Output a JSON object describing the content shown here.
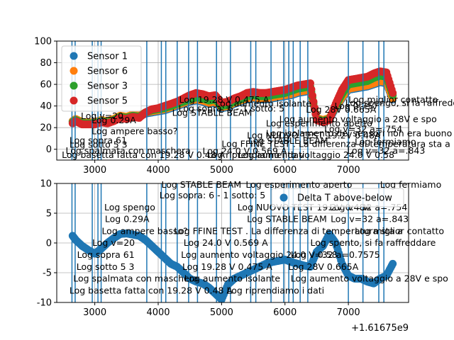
{
  "chart_data": [
    {
      "type": "scatter",
      "title": "",
      "xlabel": "",
      "ylabel": "",
      "xlim": [
        2400,
        7950
      ],
      "ylim": [
        -10,
        100
      ],
      "yticks": [
        0,
        20,
        40,
        60,
        80,
        100
      ],
      "xticks": [
        3000,
        4000,
        5000,
        6000,
        7000
      ],
      "x_offset_text": "",
      "grid": true,
      "legend_position": "upper-left",
      "x": [
        2650,
        2700,
        2800,
        2900,
        3000,
        3100,
        3200,
        3300,
        3400,
        3500,
        3600,
        3700,
        3800,
        3900,
        4000,
        4100,
        4200,
        4300,
        4400,
        4500,
        4600,
        4700,
        4800,
        4900,
        5000,
        5100,
        5200,
        5300,
        5400,
        5500,
        5600,
        5700,
        5800,
        5900,
        6000,
        6100,
        6200,
        6300,
        6400,
        6500,
        6600,
        6700,
        6800,
        6900,
        7000,
        7100,
        7200,
        7300,
        7400,
        7500,
        7600,
        7700
      ],
      "series": [
        {
          "name": "Sensor 1",
          "color": "#1f77b4",
          "values": [
            26,
            27,
            24,
            25,
            24,
            26,
            25,
            27,
            30,
            29,
            31,
            30,
            33,
            34,
            35,
            36,
            38,
            40,
            42,
            44,
            45,
            44,
            42,
            43,
            38,
            39,
            42,
            44,
            46,
            47,
            46,
            46,
            47,
            48,
            49,
            50,
            52,
            53,
            54,
            28,
            26,
            28,
            38,
            47,
            55,
            56,
            57,
            58,
            60,
            62,
            61,
            46
          ]
        },
        {
          "name": "Sensor 6",
          "color": "#ff7f0e",
          "values": [
            26,
            28,
            25,
            25,
            25,
            27,
            26,
            28,
            31,
            30,
            32,
            31,
            34,
            35,
            36,
            37,
            39,
            41,
            43,
            45,
            46,
            45,
            43,
            44,
            39,
            40,
            43,
            45,
            47,
            48,
            47,
            47,
            48,
            49,
            50,
            51,
            53,
            54,
            55,
            29,
            27,
            29,
            39,
            48,
            56,
            57,
            58,
            59,
            61,
            63,
            62,
            47
          ]
        },
        {
          "name": "Sensor 3",
          "color": "#2ca02c",
          "values": [
            25,
            27,
            24,
            24,
            24,
            26,
            25,
            27,
            30,
            29,
            31,
            30,
            34,
            36,
            37,
            38,
            40,
            42,
            44,
            46,
            48,
            47,
            45,
            46,
            40,
            41,
            44,
            46,
            49,
            50,
            49,
            49,
            50,
            51,
            52,
            54,
            56,
            57,
            58,
            28,
            26,
            28,
            40,
            51,
            60,
            61,
            62,
            63,
            66,
            68,
            67,
            50
          ]
        },
        {
          "name": "Sensor 5",
          "color": "#d62728",
          "values": [
            24,
            26,
            23,
            23,
            23,
            25,
            24,
            26,
            29,
            28,
            30,
            29,
            34,
            37,
            38,
            40,
            42,
            44,
            47,
            50,
            52,
            51,
            49,
            50,
            43,
            44,
            47,
            49,
            52,
            53,
            52,
            52,
            53,
            54,
            55,
            57,
            59,
            60,
            61,
            27,
            25,
            27,
            42,
            55,
            64,
            65,
            66,
            67,
            70,
            72,
            71,
            52
          ]
        }
      ]
    },
    {
      "type": "scatter",
      "title": "",
      "xlabel": "",
      "ylabel": "",
      "xlim": [
        2400,
        7950
      ],
      "ylim": [
        -10,
        10
      ],
      "yticks": [
        -10,
        -5,
        0,
        5,
        10
      ],
      "xticks": [
        3000,
        4000,
        5000,
        6000,
        7000
      ],
      "x_offset_text": "+1.61675e9",
      "grid": true,
      "legend_position": "upper-right",
      "x": [
        2650,
        2700,
        2800,
        2900,
        3000,
        3100,
        3200,
        3300,
        3400,
        3500,
        3600,
        3700,
        3800,
        3900,
        4000,
        4100,
        4200,
        4300,
        4400,
        4500,
        4600,
        4700,
        4800,
        4900,
        5000,
        5100,
        5200,
        5300,
        5400,
        5500,
        5600,
        5700,
        5800,
        5900,
        6000,
        6100,
        6200,
        6300,
        6400,
        6500,
        6600,
        6700,
        6800,
        6900,
        7000,
        7100,
        7200,
        7300,
        7400,
        7500,
        7600,
        7700
      ],
      "series": [
        {
          "name": "Delta T above-below",
          "color": "#1f77b4",
          "values": [
            1.2,
            0.5,
            -0.5,
            -1.2,
            -1.8,
            -1.0,
            0.0,
            0.8,
            1.5,
            1.6,
            1.4,
            1.2,
            0.5,
            -0.5,
            -1.5,
            -2.5,
            -3.5,
            -4.0,
            -5.0,
            -6.0,
            -6.5,
            -6.8,
            -7.5,
            -8.5,
            -9.5,
            -7.0,
            -6.0,
            -5.5,
            -5.0,
            -4.5,
            -4.0,
            -3.5,
            -3.2,
            -3.0,
            -2.8,
            -3.2,
            -3.5,
            -3.8,
            -4.0,
            -1.5,
            -0.5,
            1.5,
            0.0,
            -3.5,
            -5.5,
            -6.0,
            -6.0,
            -6.5,
            -6.8,
            -6.0,
            -5.5,
            -3.5
          ]
        }
      ]
    }
  ],
  "annotations": {
    "log_lines_x": [
      2640,
      2690,
      2960,
      3050,
      3100,
      3820,
      4050,
      4120,
      4300,
      4480,
      4620,
      4920,
      5140,
      5460,
      5540,
      5780,
      5980,
      6060,
      6130,
      6240,
      6360,
      7000,
      7230,
      7480,
      7560
    ],
    "top_labels": [
      {
        "text": "Log 19.28 V 0.475 A",
        "x": 4330,
        "y": 43
      },
      {
        "text": "Log aumento isolante",
        "x": 4900,
        "y": 39.5
      },
      {
        "text": "Log sopra: 6 - 1 sotto: 5",
        "x": 4320,
        "y": 35
      },
      {
        "text": "Log STABLE BEAM",
        "x": 4220,
        "y": 31
      },
      {
        "text": "Log 28V 0.665A",
        "x": 6330,
        "y": 34
      },
      {
        "text": "Log 0.757",
        "x": 6780,
        "y": 37
      },
      {
        "text": "Log spengo, si fa raffreddare",
        "x": 6950,
        "y": 40
      },
      {
        "text": "Log miglior contatto",
        "x": 7000,
        "y": 43
      },
      {
        "text": "Log v=20",
        "x": 2780,
        "y": 28
      },
      {
        "text": "Log 0.29A",
        "x": 2950,
        "y": 24
      },
      {
        "text": "Log ampere basso?",
        "x": 2950,
        "y": 14
      },
      {
        "text": "Log sopra 61",
        "x": 2600,
        "y": 5.5
      },
      {
        "text": "Log sotto 5 3",
        "x": 2600,
        "y": 1.5
      },
      {
        "text": "Log spalmata con maschera",
        "x": 2540,
        "y": -4
      },
      {
        "text": "Log basetta fatta con 19.28 V 0.48 A",
        "x": 2480,
        "y": -8
      },
      {
        "text": "Log riprendiamo i dati",
        "x": 4770,
        "y": -8
      },
      {
        "text": "Log 24.0 V 0.569 A",
        "x": 4700,
        "y": -4.5
      },
      {
        "text": "Log STABLE BEAM",
        "x": 5420,
        "y": 5
      },
      {
        "text": "Log isolamento dei sensori non era buono",
        "x": 5700,
        "y": 12
      },
      {
        "text": "Log FFINE TEST . La differenza di temperatura sta a",
        "x": 5000,
        "y": 2
      },
      {
        "text": "Log NUOVO TEST 19.2V 0.48A",
        "x": 5400,
        "y": 10
      },
      {
        "text": "Log esperimento aperto",
        "x": 5700,
        "y": 21
      },
      {
        "text": "Log aumento voltaggio a 28V e spo",
        "x": 5910,
        "y": 25
      },
      {
        "text": "Log aumento voltaggio 24.0 V 0.58",
        "x": 5260,
        "y": -8
      },
      {
        "text": "Log v=32 a=.754",
        "x": 6620,
        "y": 16
      },
      {
        "text": "Log fermiamo",
        "x": 7100,
        "y": 4
      },
      {
        "text": "Log v=32 a=.843",
        "x": 6980,
        "y": -4
      }
    ],
    "bottom_labels": [
      {
        "text": "Log STABLE BEAM",
        "x": 4050,
        "y": 9.3
      },
      {
        "text": "Log esperimento aperto",
        "x": 5380,
        "y": 9.3
      },
      {
        "text": "Log fermiamo",
        "x": 7500,
        "y": 9.3
      },
      {
        "text": "Log sopra: 6 - 1 sotto: 5",
        "x": 4020,
        "y": 7.5
      },
      {
        "text": "Log spengo",
        "x": 3150,
        "y": 5.5
      },
      {
        "text": "Log 0.29A",
        "x": 3160,
        "y": 3.5
      },
      {
        "text": "Log NUOVO TEST 19.2V 0.48A",
        "x": 5250,
        "y": 5.5
      },
      {
        "text": "Log v=32 a=.754",
        "x": 6700,
        "y": 5.5
      },
      {
        "text": "Log STABLE BEAM",
        "x": 5400,
        "y": 3.5
      },
      {
        "text": "Log v=32 a=.843",
        "x": 6720,
        "y": 3.5
      },
      {
        "text": "Log ampere basso?",
        "x": 3110,
        "y": 1.5
      },
      {
        "text": "Log FFINE TEST . La differenza di temperatura sta a",
        "x": 4250,
        "y": 1.5
      },
      {
        "text": "Log miglior contatto",
        "x": 7100,
        "y": 1.5
      },
      {
        "text": "Log v=20",
        "x": 2960,
        "y": -0.5
      },
      {
        "text": "Log 24.0 V 0.569 A",
        "x": 4400,
        "y": -0.5
      },
      {
        "text": "Log spento, si fa raffreddare",
        "x": 6400,
        "y": -0.5
      },
      {
        "text": "Log aumento voltaggio 24.0 V 0.58",
        "x": 4360,
        "y": -2.5
      },
      {
        "text": "Log v=32 a=0.7575",
        "x": 6090,
        "y": -2.5
      },
      {
        "text": "Log sopra 61",
        "x": 2720,
        "y": -2.5
      },
      {
        "text": "Log sotto 5 3",
        "x": 2710,
        "y": -4.5
      },
      {
        "text": "Log 19.28 V 0.475 A",
        "x": 4380,
        "y": -4.5
      },
      {
        "text": "Log 28V 0.665A",
        "x": 6050,
        "y": -4.5
      },
      {
        "text": "Log spalmata con maschera",
        "x": 2660,
        "y": -6.5
      },
      {
        "text": "Log aumento isolante",
        "x": 4410,
        "y": -6.5
      },
      {
        "text": "Log aumento voltaggio a 28V e spo",
        "x": 6090,
        "y": -6.5
      },
      {
        "text": "Log basetta fatta con 19.28 V 0.48 A",
        "x": 2600,
        "y": -8.5
      },
      {
        "text": "Log riprendiamo i dati",
        "x": 5080,
        "y": -8.5
      }
    ]
  }
}
